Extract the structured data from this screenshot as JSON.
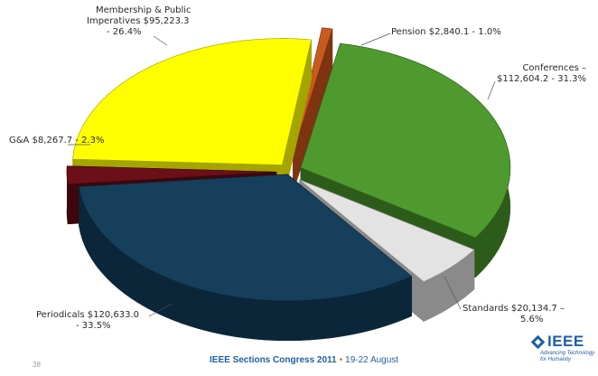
{
  "chart_data": {
    "type": "pie",
    "title": "",
    "slices": [
      {
        "label": "Pension",
        "value": 2840.1,
        "display": "$2,840.1",
        "percent": "1.0%",
        "color": "#c95a1d",
        "side": "#7e3410"
      },
      {
        "label": "Conferences",
        "value": 112604.2,
        "display": "$112,604.2",
        "percent": "31.3%",
        "color": "#4f9a2f",
        "side": "#2d5c1a"
      },
      {
        "label": "Standards",
        "value": 20134.7,
        "display": "$20,134.7",
        "percent": "5.6%",
        "color": "#e3e3e3",
        "side": "#8a8a8a"
      },
      {
        "label": "Periodicals",
        "value": 120633.0,
        "display": "$120,633.0",
        "percent": "33.5%",
        "color": "#163f5c",
        "side": "#0b2638"
      },
      {
        "label": "G&A",
        "value": 8267.7,
        "display": "$8,267.7",
        "percent": "2.3%",
        "color": "#6b0f18",
        "side": "#3d070c"
      },
      {
        "label": "Membership & Public Imperatives",
        "value": 95223.3,
        "display": "$95,223.3",
        "percent": "26.4%",
        "color": "#ffff00",
        "side": "#a5a500"
      }
    ]
  },
  "labels": {
    "pension": "Pension $2,840.1 - 1.0%",
    "conferences_1": "Conferences –",
    "conferences_2": "$112,604.2 - 31.3%",
    "standards_1": "Standards  $20,134.7 –",
    "standards_2": "5.6%",
    "periodicals_1": "Periodicals  $120,633.0",
    "periodicals_2": "- 33.5%",
    "ga": "G&A    $8,267.7 - 2.3%",
    "membership_1": "Membership & Public",
    "membership_2": "Imperatives  $95,223.3",
    "membership_3": "- 26.4%"
  },
  "footer": {
    "event": "IEEE Sections Congress 2011",
    "separator": "•",
    "dates": "19-22 August",
    "page_number": "38",
    "logo_word": "IEEE",
    "logo_tag_1": "Advancing Technology",
    "logo_tag_2": "for Humanity"
  }
}
